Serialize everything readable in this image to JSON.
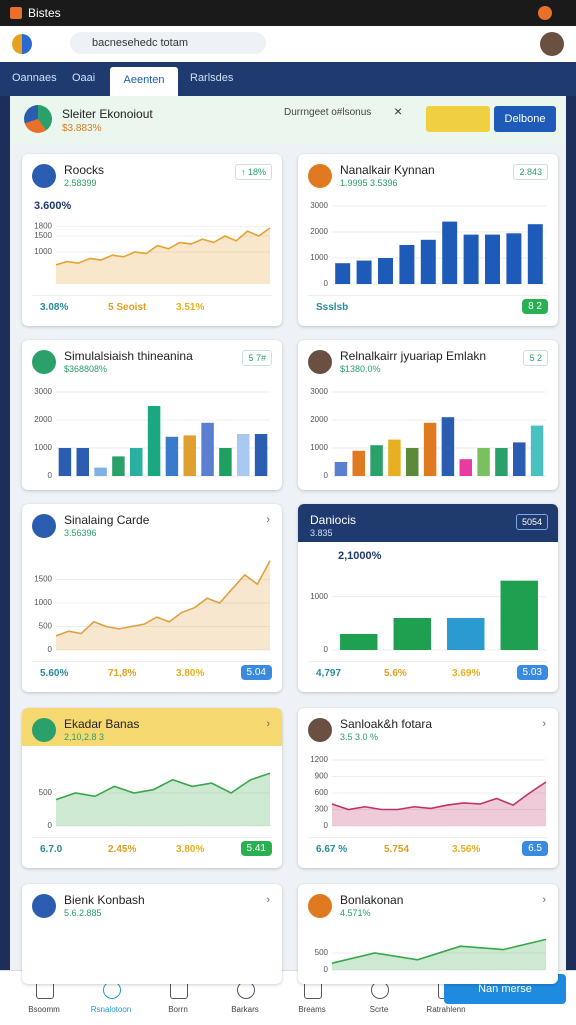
{
  "status": {
    "app": "Bistes"
  },
  "browser": {
    "search": "bacnesehedc totam"
  },
  "tabs": [
    "Oannaes",
    "Oaai",
    "Aeenten",
    "Rarlsdes"
  ],
  "banner": {
    "title": "Sleiter Ekonoiout",
    "value": "$3.883%",
    "note": "Durrngeet o#lsonus",
    "close": "×",
    "button": "Delbone"
  },
  "cards": [
    {
      "title": "Roocks",
      "subtitle": "2.58399",
      "badge": "↑ 18%",
      "highlight": "3.600%",
      "chart": {
        "type": "area",
        "color": "#e8a030",
        "ylim": [
          0,
          2000
        ],
        "yticks": [
          1000,
          1500,
          1800
        ],
        "values": [
          600,
          700,
          650,
          800,
          750,
          900,
          850,
          1000,
          950,
          1200,
          1100,
          1300,
          1250,
          1400,
          1300,
          1500,
          1350,
          1650,
          1500,
          1750
        ]
      },
      "stats": [
        "3.08%",
        "5 Seoist",
        "3.51%"
      ]
    },
    {
      "title": "Nanalkair Kynnan",
      "subtitle": "1.9995 3.5396",
      "badge": "2.843",
      "chart": {
        "type": "bar",
        "color": "#1e5bb8",
        "ylim": [
          0,
          3000
        ],
        "yticks": [
          0,
          1000,
          2000,
          3000
        ],
        "values": [
          800,
          900,
          1000,
          1500,
          1700,
          2400,
          1900,
          1900,
          1950,
          2300
        ]
      },
      "stats": [
        "Ssslsb"
      ],
      "pill": "8 2"
    },
    {
      "title": "Simulalsiaish thineanina",
      "subtitle": "$368808%",
      "badge": "5 7#",
      "chart": {
        "type": "bar",
        "colors": [
          "#2a5db0",
          "#2a5db0",
          "#7fb0e6",
          "#2aa06a",
          "#2ab0a0",
          "#1aa880",
          "#3a7acc",
          "#e0a030",
          "#5b7fd0",
          "#1ea060",
          "#a8c8f0",
          "#2a5db0"
        ],
        "ylim": [
          0,
          3000
        ],
        "yticks": [
          0,
          1000,
          2000,
          3000
        ],
        "values": [
          1000,
          1000,
          300,
          700,
          1000,
          2500,
          1400,
          1450,
          1900,
          1000,
          1500,
          1500
        ]
      }
    },
    {
      "title": "Relnalkairr jyuariap Emlakn",
      "subtitle": "$1380.0%",
      "badge": "5 2",
      "chart": {
        "type": "bar",
        "colors": [
          "#5b7fd0",
          "#e07a20",
          "#2aa06a",
          "#e8b020",
          "#5a8a3a",
          "#e07a20",
          "#2a5db0",
          "#e83aa0",
          "#7ac060",
          "#2aa06a",
          "#2a5db0",
          "#4ac0c0"
        ],
        "ylim": [
          0,
          3000
        ],
        "yticks": [
          0,
          1000,
          2000,
          3000
        ],
        "values": [
          500,
          900,
          1100,
          1300,
          1000,
          1900,
          2100,
          600,
          1000,
          1000,
          1200,
          1800
        ]
      }
    },
    {
      "title": "Sinalaing Carde",
      "subtitle": "3.56396",
      "chart": {
        "type": "area",
        "color": "#e0a040",
        "ylim": [
          0,
          2000
        ],
        "yticks": [
          0,
          500,
          1000,
          1500
        ],
        "values": [
          300,
          400,
          350,
          600,
          500,
          450,
          500,
          550,
          700,
          600,
          800,
          900,
          1100,
          1000,
          1300,
          1600,
          1400,
          1900
        ]
      },
      "stats": [
        "5.60%",
        "71,8%",
        "3.80%"
      ],
      "pill": "5.04"
    },
    {
      "title": "Daniocis",
      "subtitle": "3.835",
      "badge": "5054",
      "dark": true,
      "highlight": "2,1000%",
      "chart": {
        "type": "bar",
        "colors": [
          "#1ea050",
          "#1ea050",
          "#2a9ad0",
          "#1ea050"
        ],
        "ylim": [
          0,
          1500
        ],
        "yticks": [
          0,
          1000
        ],
        "values": [
          300,
          600,
          600,
          1300
        ]
      },
      "stats": [
        "4,797",
        "5.6%",
        "3.69%"
      ],
      "pill": "5.03"
    },
    {
      "title": "Ekadar Banas",
      "subtitle": "2,10,2.8 3",
      "yellow": true,
      "chart": {
        "type": "area",
        "color": "#3aa64a",
        "ylim": [
          0,
          1000
        ],
        "yticks": [
          0,
          500
        ],
        "values": [
          400,
          500,
          450,
          600,
          500,
          550,
          700,
          600,
          650,
          500,
          700,
          800
        ]
      },
      "stats": [
        "6.7.0",
        "2.45%",
        "3.80%"
      ],
      "pill": "5.41"
    },
    {
      "title": "Sanloak&h fotara",
      "subtitle": "3.5 3.0 %",
      "chart": {
        "type": "area",
        "color": "#c0306a",
        "ylim": [
          0,
          1200
        ],
        "yticks": [
          0,
          300,
          600,
          900,
          1200
        ],
        "values": [
          400,
          300,
          350,
          300,
          300,
          350,
          320,
          380,
          420,
          400,
          500,
          380,
          600,
          800
        ]
      },
      "stats": [
        "6.67 %",
        "5.754",
        "3.56%"
      ],
      "pill": "6.5"
    },
    {
      "title": "Bienk Konbash",
      "subtitle": "5.6.2.885"
    },
    {
      "title": "Bonlakonan",
      "subtitle": "4.571%",
      "chart": {
        "type": "area",
        "color": "#3aa64a",
        "ylim": [
          0,
          1000
        ],
        "yticks": [
          0,
          500
        ],
        "values": [
          200,
          500,
          300,
          700,
          600,
          900
        ]
      }
    }
  ],
  "nav": [
    "Bsoomm",
    "Rsnalotoon",
    "Borrn",
    "Barkars",
    "Breams",
    "Scrte",
    "Ratrahlenn"
  ],
  "fab": "Nan merse"
}
